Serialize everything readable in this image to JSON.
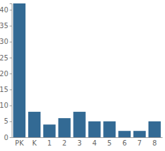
{
  "chart_data": {
    "type": "bar",
    "categories": [
      "PK",
      "K",
      "1",
      "2",
      "3",
      "4",
      "5",
      "6",
      "7",
      "8"
    ],
    "values": [
      42,
      8,
      4,
      6,
      8,
      5,
      5,
      2,
      2,
      5
    ],
    "color": "#336a94",
    "ylim": [
      0,
      42
    ],
    "yticks": [
      0,
      5,
      10,
      15,
      20,
      25,
      30,
      35,
      40
    ],
    "grid": false
  }
}
